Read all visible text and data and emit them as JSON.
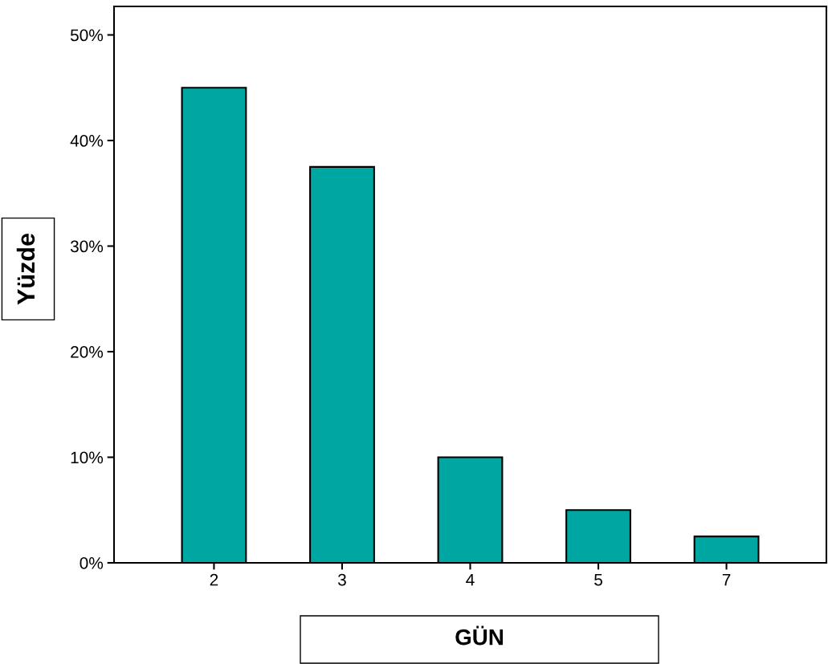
{
  "chart_data": {
    "type": "bar",
    "xlabel": "GÜN",
    "ylabel": "Yüzde",
    "categories": [
      "2",
      "3",
      "4",
      "5",
      "7"
    ],
    "values": [
      45,
      37.5,
      10,
      5,
      2.5
    ],
    "color": "#00a6a2",
    "ylim": [
      0,
      52.7
    ],
    "yticks": [
      {
        "value": 0,
        "label": "0%"
      },
      {
        "value": 10,
        "label": "10%"
      },
      {
        "value": 20,
        "label": "20%"
      },
      {
        "value": 30,
        "label": "30%"
      },
      {
        "value": 40,
        "label": "40%"
      },
      {
        "value": 50,
        "label": "50%"
      }
    ],
    "grid": false,
    "legend": false
  }
}
